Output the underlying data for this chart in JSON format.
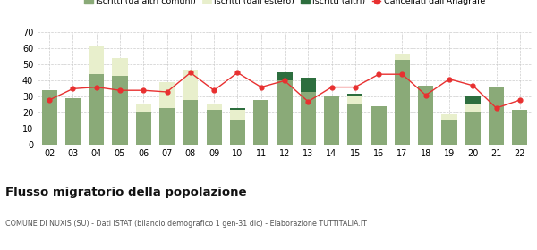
{
  "years": [
    "02",
    "03",
    "04",
    "05",
    "06",
    "07",
    "08",
    "09",
    "10",
    "11",
    "12",
    "13",
    "14",
    "15",
    "16",
    "17",
    "18",
    "19",
    "20",
    "21",
    "22"
  ],
  "iscritti_altri_comuni": [
    34,
    29,
    44,
    43,
    21,
    23,
    28,
    22,
    16,
    28,
    40,
    33,
    31,
    25,
    24,
    53,
    37,
    16,
    21,
    36,
    22
  ],
  "iscritti_estero": [
    0,
    0,
    18,
    11,
    5,
    16,
    19,
    3,
    6,
    0,
    0,
    0,
    0,
    6,
    0,
    4,
    0,
    3,
    5,
    0,
    0
  ],
  "iscritti_altri": [
    0,
    0,
    0,
    0,
    0,
    0,
    0,
    0,
    1,
    0,
    5,
    9,
    0,
    1,
    0,
    0,
    0,
    0,
    5,
    0,
    0
  ],
  "cancellati": [
    28,
    35,
    36,
    34,
    34,
    33,
    45,
    34,
    45,
    36,
    40,
    27,
    36,
    36,
    44,
    44,
    31,
    41,
    37,
    23,
    28
  ],
  "color_altri_comuni": "#8aaa78",
  "color_estero": "#e8efcc",
  "color_altri": "#2d6e3e",
  "color_cancellati": "#e83030",
  "ylim": [
    0,
    70
  ],
  "yticks": [
    0,
    10,
    20,
    30,
    40,
    50,
    60,
    70
  ],
  "title": "Flusso migratorio della popolazione",
  "subtitle": "COMUNE DI NUXIS (SU) - Dati ISTAT (bilancio demografico 1 gen-31 dic) - Elaborazione TUTTITALIA.IT",
  "legend_labels": [
    "Iscritti (da altri comuni)",
    "Iscritti (dall'estero)",
    "Iscritti (altri)",
    "Cancellati dall'Anagrafe"
  ],
  "bg_color": "#ffffff",
  "grid_color": "#cccccc"
}
